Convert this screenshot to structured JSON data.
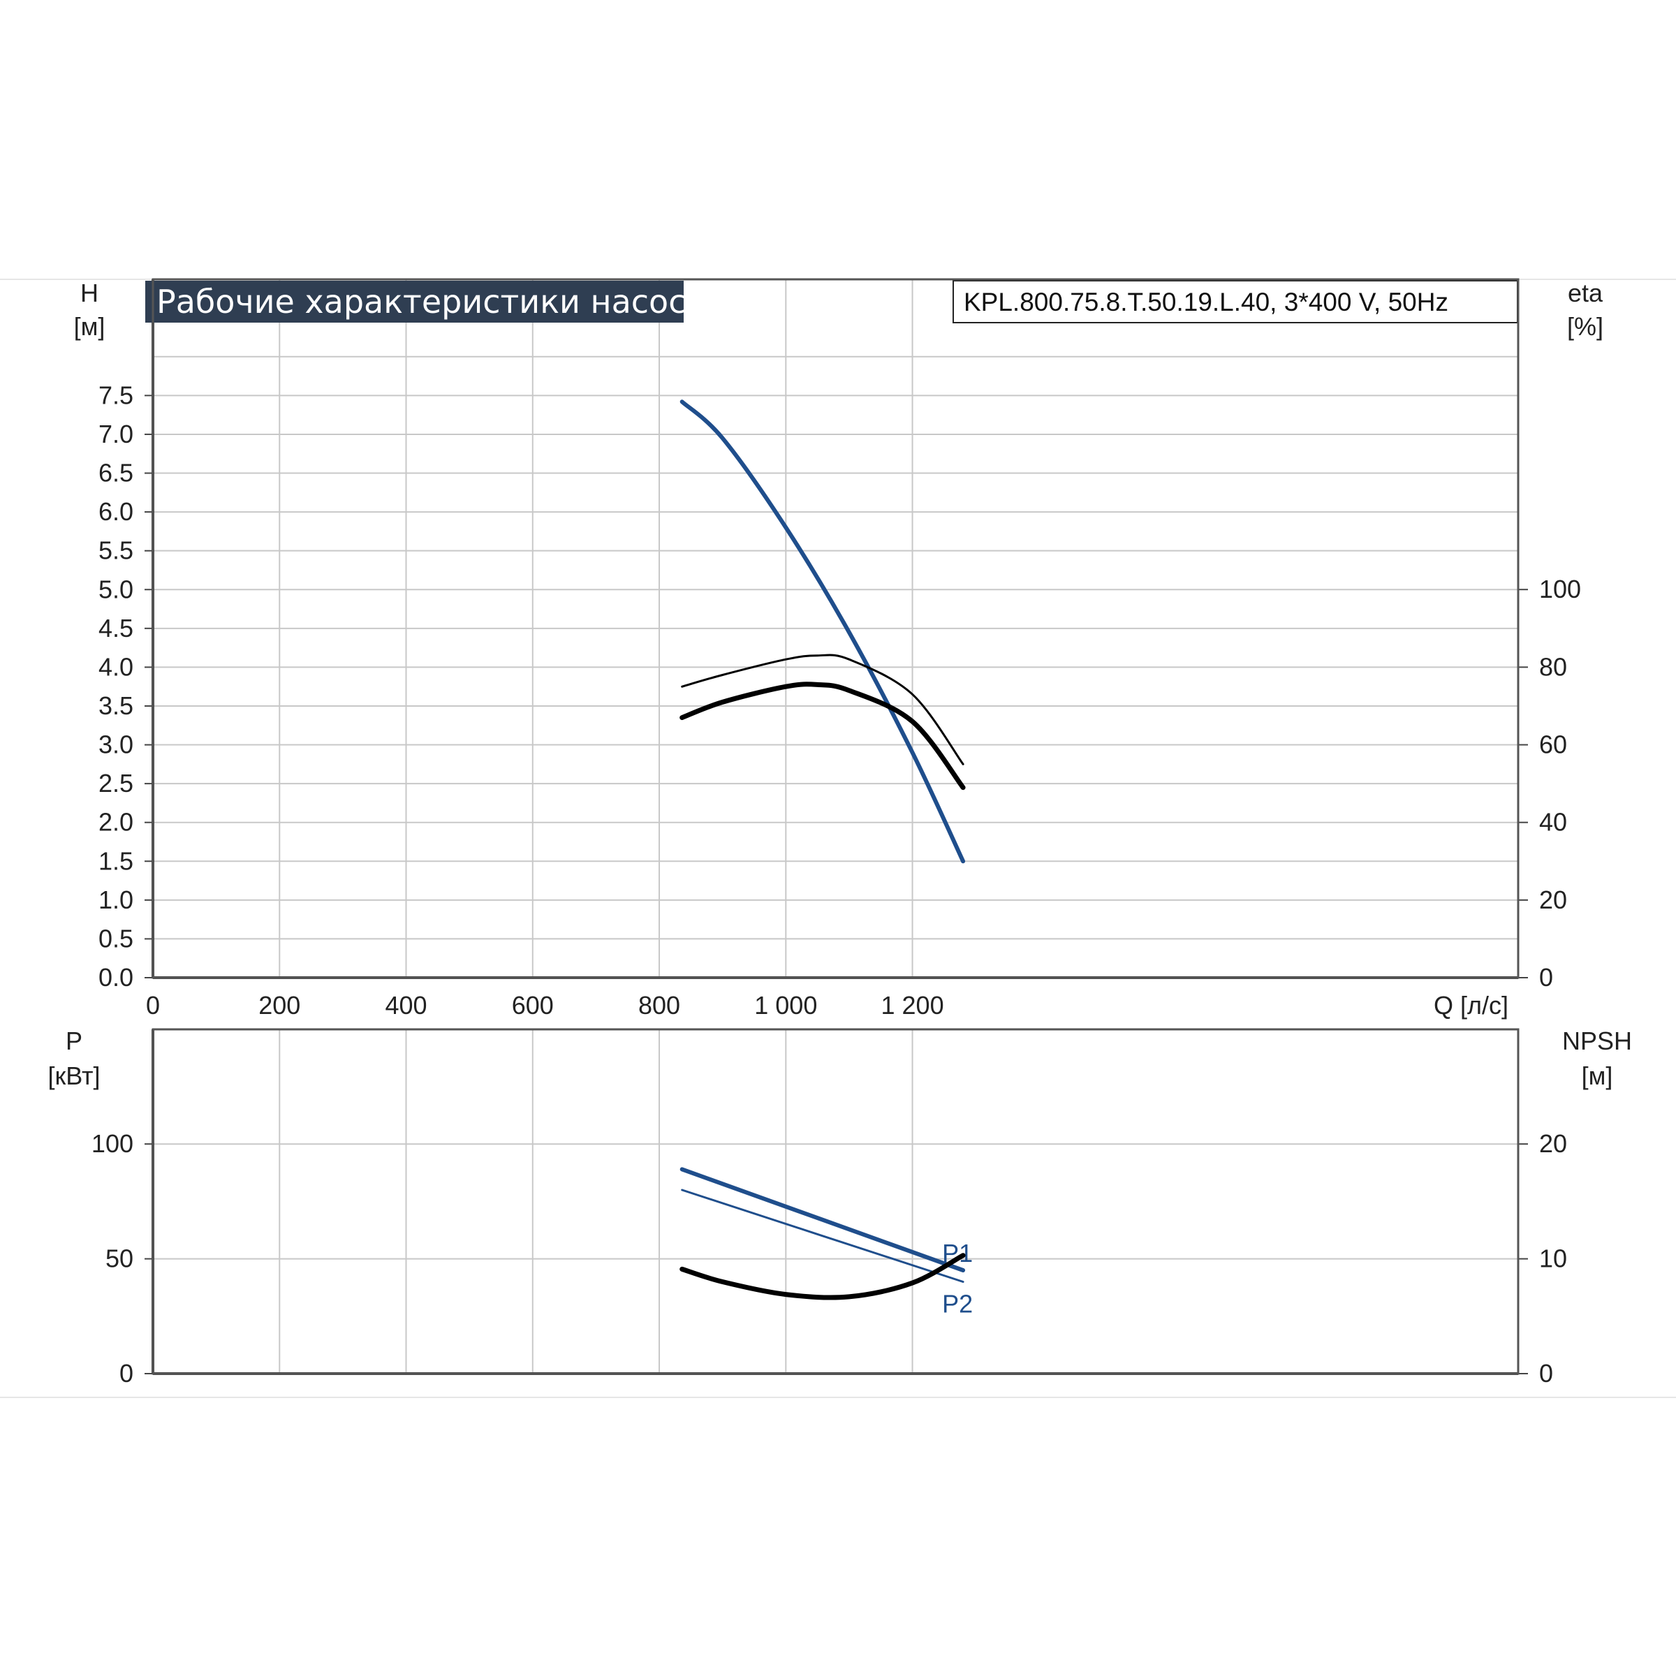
{
  "title": "Рабочие характеристики насоса",
  "model": "KPL.800.75.8.T.50.19.L.40, 3*400 V, 50Hz",
  "colors": {
    "blue": "#1f4e8c",
    "black": "#000000",
    "grid": "#c8c8c8",
    "title_bg": "#2f3e52"
  },
  "chart_data": [
    {
      "type": "line",
      "name": "upper",
      "xlabel": "Q [л/с]",
      "ylabel": {
        "name": "H",
        "unit": "[м]"
      },
      "y2label": {
        "name": "eta",
        "unit": "[%]"
      },
      "xlim": [
        0,
        1400
      ],
      "ylim": [
        0,
        8
      ],
      "y2lim": [
        0,
        100
      ],
      "xticks": [
        {
          "v": 0,
          "label": "0"
        },
        {
          "v": 200,
          "label": "200"
        },
        {
          "v": 400,
          "label": "400"
        },
        {
          "v": 600,
          "label": "600"
        },
        {
          "v": 800,
          "label": "800"
        },
        {
          "v": 1000,
          "label": "1 000"
        },
        {
          "v": 1200,
          "label": "1 200"
        }
      ],
      "yticks": [
        {
          "v": 0,
          "label": "0.0"
        },
        {
          "v": 0.5,
          "label": "0.5"
        },
        {
          "v": 1,
          "label": "1.0"
        },
        {
          "v": 1.5,
          "label": "1.5"
        },
        {
          "v": 2,
          "label": "2.0"
        },
        {
          "v": 2.5,
          "label": "2.5"
        },
        {
          "v": 3,
          "label": "3.0"
        },
        {
          "v": 3.5,
          "label": "3.5"
        },
        {
          "v": 4,
          "label": "4.0"
        },
        {
          "v": 4.5,
          "label": "4.5"
        },
        {
          "v": 5,
          "label": "5.0"
        },
        {
          "v": 5.5,
          "label": "5.5"
        },
        {
          "v": 6,
          "label": "6.0"
        },
        {
          "v": 6.5,
          "label": "6.5"
        },
        {
          "v": 7,
          "label": "7.0"
        },
        {
          "v": 7.5,
          "label": "7.5"
        }
      ],
      "y2ticks": [
        {
          "v": 0,
          "label": "0"
        },
        {
          "v": 20,
          "label": "20"
        },
        {
          "v": 40,
          "label": "40"
        },
        {
          "v": 60,
          "label": "60"
        },
        {
          "v": 80,
          "label": "80"
        },
        {
          "v": 100,
          "label": "100"
        }
      ],
      "extra_grid_y": [
        8
      ],
      "grid": true,
      "series": [
        {
          "axis": "y",
          "color": "#1f4e8c",
          "width": 6,
          "x": [
            836,
            900,
            1000,
            1100,
            1200,
            1280
          ],
          "y": [
            7.42,
            6.95,
            5.8,
            4.45,
            2.9,
            1.5
          ]
        },
        {
          "axis": "y2",
          "color": "#000000",
          "width": 3,
          "x": [
            836,
            900,
            1000,
            1050,
            1100,
            1200,
            1280
          ],
          "y": [
            75,
            78,
            82,
            83,
            82,
            73,
            55
          ]
        },
        {
          "axis": "y2",
          "color": "#000000",
          "width": 7,
          "x": [
            836,
            900,
            1000,
            1050,
            1100,
            1200,
            1280
          ],
          "y": [
            67,
            71,
            75,
            75.5,
            74,
            66,
            49
          ]
        }
      ]
    },
    {
      "type": "line",
      "name": "lower",
      "ylabel": {
        "name": "P",
        "unit": "[кВт]"
      },
      "y2label": {
        "name": "NPSH",
        "unit": "[м]"
      },
      "xlim": [
        0,
        1400
      ],
      "ylim": [
        0,
        150
      ],
      "y2lim": [
        0,
        30
      ],
      "xticks": [
        {
          "v": 0
        },
        {
          "v": 200
        },
        {
          "v": 400
        },
        {
          "v": 600
        },
        {
          "v": 800
        },
        {
          "v": 1000
        },
        {
          "v": 1200
        }
      ],
      "yticks": [
        {
          "v": 0,
          "label": "0"
        },
        {
          "v": 50,
          "label": "50"
        },
        {
          "v": 100,
          "label": "100"
        }
      ],
      "y2ticks": [
        {
          "v": 0,
          "label": "0"
        },
        {
          "v": 10,
          "label": "10"
        },
        {
          "v": 20,
          "label": "20"
        }
      ],
      "grid": true,
      "series": [
        {
          "axis": "y",
          "name": "P1",
          "color": "#1f4e8c",
          "width": 6,
          "x": [
            836,
            1280
          ],
          "y": [
            89,
            45
          ]
        },
        {
          "axis": "y",
          "name": "P2",
          "color": "#1f4e8c",
          "width": 3,
          "x": [
            836,
            1280
          ],
          "y": [
            80,
            40
          ]
        },
        {
          "axis": "y2",
          "color": "#000000",
          "width": 7,
          "x": [
            836,
            900,
            1000,
            1100,
            1200,
            1280
          ],
          "y": [
            9.1,
            8.0,
            6.9,
            6.7,
            7.9,
            10.3
          ]
        }
      ]
    }
  ]
}
